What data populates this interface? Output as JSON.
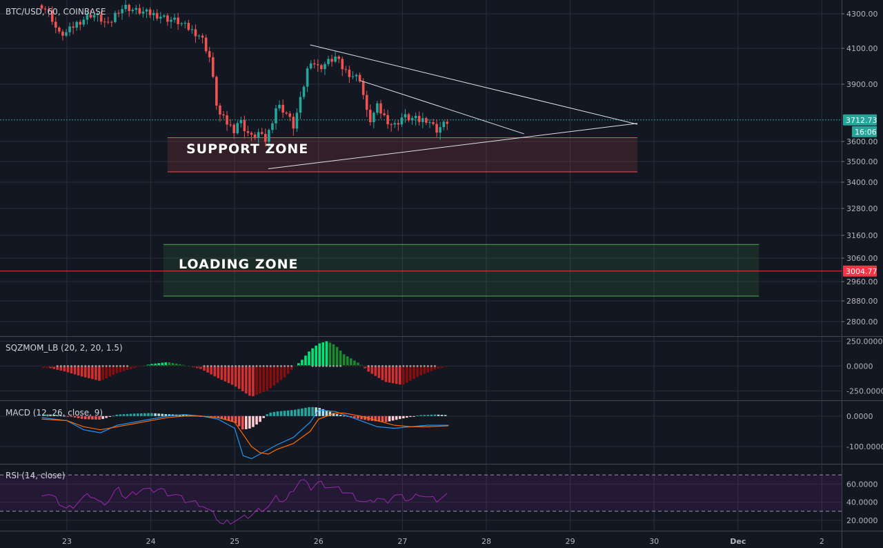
{
  "symbol_label": "BTC/USD, 60, COINBASE",
  "colors": {
    "background": "#131722",
    "grid": "#2a2e39",
    "up": "#26a69a",
    "down": "#ef5350",
    "price_tag": "#26a69a",
    "alert_tag": "#f23645",
    "support_zone": "#ef5350",
    "loading_zone": "#4caf50",
    "trendline": "#e0e3eb",
    "rsi": "#9c27b0",
    "macd_line": "#2196f3",
    "signal_line": "#ff6d00"
  },
  "chart_data": [
    {
      "type": "line",
      "panel": "price",
      "title": "BTC/USD, 60, COINBASE",
      "x_labels": [
        "23",
        "24",
        "25",
        "26",
        "27",
        "28",
        "29",
        "30",
        "Dec",
        "2"
      ],
      "y_ticks": [
        4300,
        4100,
        3900,
        3600,
        3500,
        3400,
        3280,
        3160,
        3060,
        2960,
        2880,
        2800
      ],
      "y_tick_labels": [
        "4300.00",
        "4100.00",
        "3900.00",
        "3600.00",
        "3500.00",
        "3400.00",
        "3280.00",
        "3160.00",
        "3060.00",
        "2960.00",
        "2880.00",
        "2800.00"
      ],
      "ylim": [
        2760,
        4360
      ],
      "last_price": 3712.73,
      "last_price_label": "3712.73",
      "countdown_label": "16:06",
      "alert_price": 3004.77,
      "alert_price_label": "3004.77",
      "close_series": {
        "x": [
          22.7,
          22.8,
          22.9,
          23.0,
          23.1,
          23.2,
          23.3,
          23.4,
          23.5,
          23.6,
          23.7,
          23.8,
          23.9,
          24.0,
          24.1,
          24.2,
          24.3,
          24.4,
          24.5,
          24.6,
          24.7,
          24.8,
          24.9,
          24.95,
          25.0,
          25.05,
          25.1,
          25.2,
          25.3,
          25.35,
          25.4,
          25.5,
          25.6,
          25.7,
          25.8,
          25.85,
          25.9,
          26.0,
          26.1,
          26.2,
          26.3,
          26.4,
          26.5,
          26.55,
          26.6,
          26.7,
          26.8,
          26.9,
          27.0,
          27.1,
          27.2,
          27.3,
          27.4,
          27.5,
          27.55
        ],
        "close": [
          4350,
          4300,
          4180,
          4190,
          4240,
          4270,
          4300,
          4270,
          4230,
          4320,
          4340,
          4320,
          4310,
          4300,
          4290,
          4270,
          4260,
          4230,
          4200,
          4170,
          4050,
          3750,
          3700,
          3680,
          3660,
          3720,
          3680,
          3620,
          3650,
          3590,
          3640,
          3790,
          3760,
          3680,
          3840,
          3950,
          4040,
          3990,
          4020,
          4050,
          3980,
          3950,
          3930,
          3800,
          3700,
          3780,
          3720,
          3680,
          3730,
          3720,
          3710,
          3720,
          3660,
          3690,
          3712
        ]
      },
      "support_zone": {
        "label": "SUPPORT ZONE",
        "x_range": [
          24.2,
          29.8
        ],
        "y_range": [
          3450,
          3620
        ]
      },
      "loading_zone": {
        "label": "LOADING ZONE",
        "x_range": [
          24.15,
          31.25
        ],
        "y_range": [
          2900,
          3120
        ]
      },
      "trendlines": [
        {
          "x": [
            25.9,
            29.8
          ],
          "y": [
            4120,
            3690
          ]
        },
        {
          "x": [
            26.5,
            28.45
          ],
          "y": [
            3920,
            3640
          ]
        },
        {
          "x": [
            25.4,
            29.8
          ],
          "y": [
            3465,
            3695
          ]
        }
      ]
    },
    {
      "type": "bar",
      "panel": "squeeze_momentum",
      "title": "SQZMOM_LB (20, 2, 20, 1.5)",
      "y_ticks": [
        250,
        0,
        -250
      ],
      "y_tick_labels": [
        "250.0000",
        "0.0000",
        "-250.0000"
      ],
      "ylim": [
        -330,
        280
      ],
      "x": [
        22.8,
        23.0,
        23.2,
        23.4,
        23.6,
        23.8,
        24.0,
        24.2,
        24.4,
        24.6,
        24.8,
        25.0,
        25.2,
        25.4,
        25.6,
        25.7,
        25.8,
        25.9,
        26.0,
        26.1,
        26.2,
        26.3,
        26.5,
        26.6,
        26.8,
        27.0,
        27.2,
        27.4,
        27.55
      ],
      "values": [
        -20,
        -60,
        -110,
        -150,
        -70,
        -20,
        20,
        40,
        10,
        -30,
        -120,
        -200,
        -310,
        -240,
        -110,
        -20,
        60,
        160,
        225,
        250,
        210,
        120,
        20,
        -60,
        -160,
        -190,
        -100,
        -30,
        -5
      ]
    },
    {
      "type": "line",
      "panel": "macd",
      "title": "MACD (12, 26, close, 9)",
      "y_ticks": [
        0,
        -100
      ],
      "y_tick_labels": [
        "0.0000",
        "-100.0000"
      ],
      "ylim": [
        -150,
        45
      ],
      "series": [
        {
          "name": "",
          "x": [
            22.7,
            23.0,
            23.2,
            23.4,
            23.6,
            23.8,
            24.0,
            24.2,
            24.4,
            24.6,
            24.8,
            25.0,
            25.1,
            25.2,
            25.3,
            25.4,
            25.5,
            25.7,
            25.9,
            26.0,
            26.2,
            26.3,
            26.5,
            26.7,
            26.9,
            27.1,
            27.3,
            27.55
          ],
          "y": [
            -5,
            -15,
            -45,
            -55,
            -30,
            -20,
            -10,
            0,
            5,
            0,
            -10,
            -40,
            -130,
            -140,
            -125,
            -110,
            -95,
            -70,
            -20,
            20,
            15,
            5,
            -15,
            -35,
            -40,
            -35,
            -30,
            -30
          ]
        },
        {
          "name": "",
          "x": [
            22.7,
            23.0,
            23.2,
            23.4,
            23.6,
            23.8,
            24.0,
            24.2,
            24.4,
            24.6,
            24.8,
            25.0,
            25.1,
            25.2,
            25.3,
            25.4,
            25.5,
            25.7,
            25.9,
            26.0,
            26.2,
            26.3,
            26.5,
            26.7,
            26.9,
            27.1,
            27.3,
            27.55
          ],
          "y": [
            -10,
            -15,
            -35,
            -45,
            -35,
            -25,
            -15,
            -5,
            0,
            0,
            -5,
            -20,
            -60,
            -100,
            -120,
            -125,
            -110,
            -90,
            -50,
            -10,
            10,
            10,
            0,
            -15,
            -30,
            -35,
            -35,
            -32
          ]
        }
      ],
      "histogram": {
        "x": [
          22.8,
          23.0,
          23.2,
          23.4,
          23.6,
          23.8,
          24.0,
          24.2,
          24.4,
          24.6,
          24.8,
          25.0,
          25.1,
          25.2,
          25.3,
          25.4,
          25.5,
          25.7,
          25.9,
          26.0,
          26.2,
          26.4,
          26.6,
          26.8,
          27.0,
          27.2,
          27.4,
          27.55
        ],
        "values": [
          5,
          0,
          -10,
          -12,
          5,
          8,
          10,
          6,
          4,
          0,
          -5,
          -20,
          -45,
          -40,
          -20,
          10,
          15,
          20,
          30,
          28,
          8,
          -5,
          -15,
          -20,
          -8,
          3,
          5,
          3
        ]
      }
    },
    {
      "type": "line",
      "panel": "rsi",
      "title": "RSI (14, close)",
      "y_ticks": [
        60,
        40,
        20
      ],
      "y_tick_labels": [
        "60.0000",
        "40.0000",
        "20.0000"
      ],
      "ylim": [
        10,
        80
      ],
      "upper_band": 70,
      "lower_band": 30,
      "series": [
        {
          "name": "",
          "x": [
            22.7,
            22.8,
            22.9,
            23.0,
            23.1,
            23.2,
            23.3,
            23.4,
            23.5,
            23.6,
            23.7,
            23.8,
            23.9,
            24.0,
            24.1,
            24.2,
            24.3,
            24.4,
            24.5,
            24.6,
            24.7,
            24.8,
            24.85,
            24.9,
            25.0,
            25.1,
            25.2,
            25.3,
            25.4,
            25.5,
            25.6,
            25.7,
            25.8,
            25.9,
            26.0,
            26.1,
            26.2,
            26.3,
            26.4,
            26.5,
            26.6,
            26.7,
            26.8,
            26.9,
            27.0,
            27.1,
            27.2,
            27.3,
            27.4,
            27.5,
            27.55
          ],
          "y": [
            50,
            48,
            40,
            32,
            38,
            45,
            48,
            38,
            42,
            55,
            45,
            50,
            55,
            52,
            55,
            50,
            48,
            42,
            40,
            38,
            30,
            22,
            14,
            18,
            20,
            22,
            26,
            32,
            35,
            45,
            40,
            55,
            66,
            55,
            62,
            58,
            55,
            52,
            48,
            42,
            38,
            45,
            40,
            48,
            45,
            42,
            50,
            45,
            42,
            46,
            48
          ]
        }
      ]
    }
  ]
}
